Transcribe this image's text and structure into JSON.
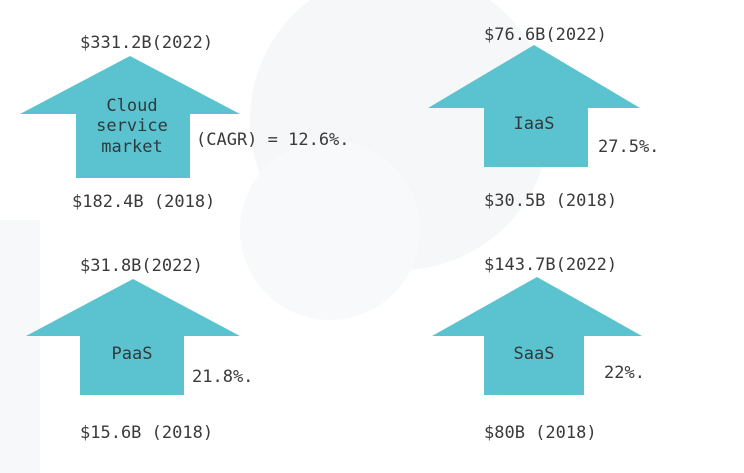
{
  "colors": {
    "arrow_fill": "#5bc3cf",
    "text": "#3a3a3a",
    "background": "#ffffff"
  },
  "cloud": {
    "value_2022": "$331.2B(2022)",
    "value_2018": "$182.4B (2018)",
    "label_lines": [
      "Cloud",
      "service",
      "market"
    ],
    "growth": "(CAGR) = 12.6%."
  },
  "iaas": {
    "value_2022": "$76.6B(2022)",
    "value_2018": "$30.5B (2018)",
    "label": "IaaS",
    "growth": "27.5%."
  },
  "paas": {
    "value_2022": "$31.8B(2022)",
    "value_2018": "$15.6B (2018)",
    "label": "PaaS",
    "growth": "21.8%."
  },
  "saas": {
    "value_2022": "$143.7B(2022)",
    "value_2018": "$80B (2018)",
    "label": "SaaS",
    "growth": "22%."
  }
}
